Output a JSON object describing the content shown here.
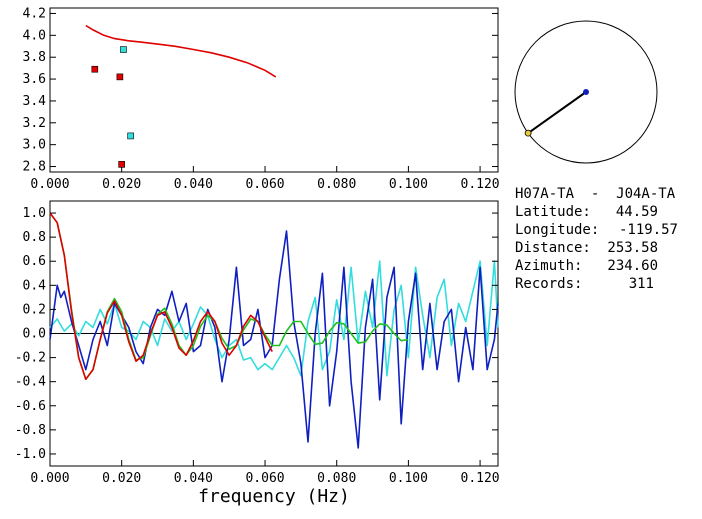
{
  "info": {
    "station_pair": "H07A-TA  -  J04A-TA",
    "rows": [
      {
        "label": "Latitude:",
        "value": "44.59"
      },
      {
        "label": "Longitude:",
        "value": "-119.57"
      },
      {
        "label": "Distance:",
        "value": "253.58"
      },
      {
        "label": "Azimuth:",
        "value": "234.60"
      },
      {
        "label": "Records:",
        "value": "311"
      }
    ]
  },
  "colors": {
    "red": "#e00000",
    "cyan": "#33dddd",
    "blue": "#1020c0",
    "green": "#22c022",
    "black": "#000000"
  },
  "chart_data": [
    {
      "type": "scatter",
      "title": "",
      "xlabel": "",
      "ylabel": "",
      "xlim": [
        0.0,
        0.125
      ],
      "ylim": [
        2.75,
        4.25
      ],
      "xticks": [
        "0.000",
        "0.020",
        "0.040",
        "0.060",
        "0.080",
        "0.100",
        "0.120"
      ],
      "yticks": [
        "2.8",
        "3.0",
        "3.2",
        "3.4",
        "3.6",
        "3.8",
        "4.0",
        "4.2"
      ],
      "curve": {
        "color": "red",
        "x": [
          0.01,
          0.012,
          0.015,
          0.018,
          0.02,
          0.022,
          0.025,
          0.03,
          0.035,
          0.04,
          0.045,
          0.05,
          0.055,
          0.06,
          0.063
        ],
        "y": [
          4.09,
          4.05,
          4.0,
          3.97,
          3.96,
          3.95,
          3.94,
          3.92,
          3.9,
          3.87,
          3.84,
          3.8,
          3.75,
          3.68,
          3.62
        ]
      },
      "points_red": [
        {
          "x": 0.0125,
          "y": 3.69
        },
        {
          "x": 0.0195,
          "y": 3.62
        },
        {
          "x": 0.02,
          "y": 2.82
        }
      ],
      "points_cyan": [
        {
          "x": 0.0205,
          "y": 3.87
        },
        {
          "x": 0.0225,
          "y": 3.08
        }
      ]
    },
    {
      "type": "line",
      "title": "",
      "xlabel": "frequency (Hz)",
      "ylabel": "",
      "xlim": [
        0.0,
        0.125
      ],
      "ylim": [
        -1.1,
        1.1
      ],
      "xticks": [
        "0.000",
        "0.020",
        "0.040",
        "0.060",
        "0.080",
        "0.100",
        "0.120"
      ],
      "yticks": [
        "-1.0",
        "-0.8",
        "-0.6",
        "-0.4",
        "-0.2",
        "0.0",
        "0.2",
        "0.4",
        "0.6",
        "0.8",
        "1.0"
      ],
      "series": [
        {
          "color": "cyan",
          "x": [
            0.0,
            0.002,
            0.004,
            0.006,
            0.008,
            0.01,
            0.012,
            0.014,
            0.016,
            0.018,
            0.02,
            0.022,
            0.024,
            0.026,
            0.028,
            0.03,
            0.032,
            0.034,
            0.036,
            0.038,
            0.04,
            0.042,
            0.044,
            0.046,
            0.048,
            0.05,
            0.052,
            0.054,
            0.056,
            0.058,
            0.06,
            0.062,
            0.064,
            0.066,
            0.068,
            0.07,
            0.072,
            0.074,
            0.076,
            0.078,
            0.08,
            0.082,
            0.084,
            0.086,
            0.088,
            0.09,
            0.092,
            0.094,
            0.096,
            0.098,
            0.1,
            0.102,
            0.104,
            0.106,
            0.108,
            0.11,
            0.112,
            0.114,
            0.116,
            0.118,
            0.12,
            0.122,
            0.124,
            0.125
          ],
          "y": [
            0.05,
            0.12,
            0.02,
            0.08,
            -0.02,
            0.1,
            0.05,
            0.2,
            0.08,
            0.25,
            0.05,
            0.02,
            -0.05,
            0.1,
            0.05,
            -0.1,
            0.12,
            0.02,
            0.1,
            -0.05,
            0.08,
            0.22,
            0.15,
            -0.05,
            -0.2,
            -0.1,
            -0.05,
            -0.22,
            -0.2,
            -0.3,
            -0.25,
            -0.3,
            -0.2,
            -0.1,
            -0.2,
            -0.35,
            0.1,
            0.3,
            -0.3,
            -0.15,
            0.28,
            -0.05,
            0.55,
            -0.08,
            0.35,
            0.05,
            0.6,
            -0.35,
            0.2,
            0.4,
            -0.2,
            0.55,
            0.15,
            -0.2,
            0.3,
            0.45,
            -0.1,
            0.25,
            0.1,
            0.35,
            0.6,
            -0.1,
            0.6,
            0.05
          ]
        },
        {
          "color": "blue",
          "x": [
            0.0,
            0.002,
            0.003,
            0.004,
            0.006,
            0.008,
            0.01,
            0.012,
            0.014,
            0.016,
            0.018,
            0.02,
            0.022,
            0.024,
            0.026,
            0.028,
            0.03,
            0.032,
            0.034,
            0.036,
            0.038,
            0.04,
            0.042,
            0.044,
            0.046,
            0.048,
            0.05,
            0.052,
            0.054,
            0.056,
            0.058,
            0.06,
            0.062,
            0.064,
            0.066,
            0.068,
            0.07,
            0.072,
            0.074,
            0.076,
            0.078,
            0.08,
            0.082,
            0.084,
            0.086,
            0.088,
            0.09,
            0.092,
            0.094,
            0.096,
            0.098,
            0.1,
            0.102,
            0.104,
            0.106,
            0.108,
            0.11,
            0.112,
            0.114,
            0.116,
            0.118,
            0.12,
            0.122,
            0.124,
            0.125
          ],
          "y": [
            -0.05,
            0.4,
            0.3,
            0.35,
            0.1,
            -0.1,
            -0.3,
            -0.05,
            0.1,
            -0.1,
            0.25,
            0.15,
            0.05,
            -0.15,
            -0.25,
            0.05,
            0.2,
            0.15,
            0.35,
            0.1,
            0.25,
            -0.15,
            -0.1,
            0.2,
            0.05,
            -0.4,
            -0.05,
            0.55,
            -0.1,
            -0.05,
            0.2,
            -0.2,
            -0.1,
            0.45,
            0.85,
            0.1,
            -0.25,
            -0.9,
            0.0,
            0.5,
            -0.6,
            -0.15,
            0.55,
            -0.4,
            -0.95,
            0.05,
            0.45,
            -0.55,
            0.3,
            0.55,
            -0.75,
            0.1,
            0.5,
            -0.3,
            0.25,
            -0.3,
            0.1,
            0.2,
            -0.4,
            0.05,
            -0.3,
            0.55,
            -0.3,
            -0.05,
            0.25
          ]
        },
        {
          "color": "green",
          "x": [
            0.0,
            0.002,
            0.004,
            0.006,
            0.008,
            0.01,
            0.012,
            0.014,
            0.016,
            0.018,
            0.02,
            0.022,
            0.024,
            0.026,
            0.028,
            0.03,
            0.032,
            0.034,
            0.036,
            0.038,
            0.04,
            0.042,
            0.044,
            0.046,
            0.048,
            0.05,
            0.052,
            0.054,
            0.056,
            0.058,
            0.06,
            0.062,
            0.064,
            0.066,
            0.068,
            0.07,
            0.072,
            0.074,
            0.076,
            0.078,
            0.08,
            0.082,
            0.084,
            0.086,
            0.088,
            0.09,
            0.092,
            0.094,
            0.096,
            0.098,
            0.1
          ],
          "y": [
            1.0,
            0.92,
            0.65,
            0.2,
            -0.2,
            -0.38,
            -0.3,
            -0.05,
            0.18,
            0.29,
            0.18,
            -0.05,
            -0.22,
            -0.2,
            -0.02,
            0.16,
            0.21,
            0.08,
            -0.1,
            -0.18,
            -0.1,
            0.06,
            0.15,
            0.1,
            -0.04,
            -0.13,
            -0.1,
            0.03,
            0.12,
            0.1,
            -0.01,
            -0.1,
            -0.1,
            0.02,
            0.1,
            0.1,
            0.0,
            -0.09,
            -0.08,
            0.02,
            0.09,
            0.08,
            0.0,
            -0.08,
            -0.07,
            0.02,
            0.08,
            0.07,
            0.0,
            -0.06,
            -0.05
          ]
        },
        {
          "color": "red",
          "x": [
            0.0,
            0.002,
            0.004,
            0.006,
            0.008,
            0.01,
            0.012,
            0.014,
            0.016,
            0.018,
            0.02,
            0.022,
            0.024,
            0.026,
            0.028,
            0.03,
            0.032,
            0.034,
            0.036,
            0.038,
            0.04,
            0.042,
            0.044,
            0.046,
            0.048,
            0.05,
            0.052,
            0.054,
            0.056,
            0.058,
            0.06,
            0.062
          ],
          "y": [
            1.0,
            0.92,
            0.65,
            0.18,
            -0.2,
            -0.38,
            -0.3,
            -0.05,
            0.17,
            0.27,
            0.15,
            -0.07,
            -0.23,
            -0.18,
            0.0,
            0.15,
            0.18,
            0.05,
            -0.12,
            -0.18,
            -0.06,
            0.1,
            0.18,
            0.1,
            -0.08,
            -0.18,
            -0.1,
            0.06,
            0.15,
            0.1,
            -0.03,
            -0.15
          ]
        }
      ]
    },
    {
      "type": "polar",
      "title": "",
      "azimuth": 234.6,
      "line_color": "black",
      "center_color": "blue",
      "end_color": "green"
    }
  ]
}
